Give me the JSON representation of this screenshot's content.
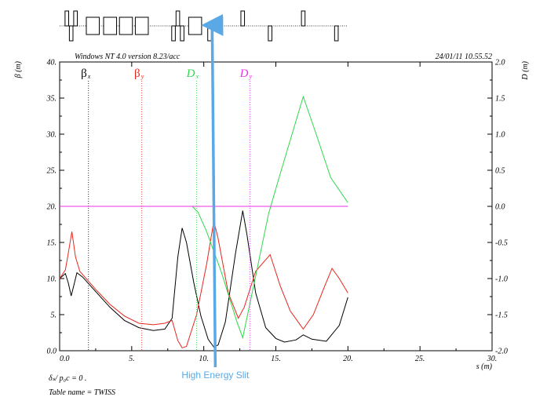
{
  "header": {
    "left": "Windows NT 4.0 version 8.23/acc",
    "right": "24/01/11  10.55.52"
  },
  "footer": {
    "line1": "δₛ/ p₀c  =  0 .",
    "line2": "Table name = TWISS"
  },
  "annotation": {
    "text": "High Energy Slit",
    "s": 10.8,
    "color": "#5aa9e6"
  },
  "lattice": [
    {
      "type": "quad_f",
      "s": 0.5,
      "len": 0.25
    },
    {
      "type": "quad_d",
      "s": 0.8,
      "len": 0.25
    },
    {
      "type": "quad_f",
      "s": 1.1,
      "len": 0.25
    },
    {
      "type": "bend",
      "s": 2.3,
      "len": 0.9
    },
    {
      "type": "bend",
      "s": 3.5,
      "len": 0.9
    },
    {
      "type": "bend",
      "s": 4.6,
      "len": 0.9
    },
    {
      "type": "bend",
      "s": 5.7,
      "len": 0.9
    },
    {
      "type": "quad_d",
      "s": 7.9,
      "len": 0.25
    },
    {
      "type": "quad_f",
      "s": 8.2,
      "len": 0.25
    },
    {
      "type": "quad_d",
      "s": 8.5,
      "len": 0.25
    },
    {
      "type": "bend",
      "s": 9.4,
      "len": 0.9
    },
    {
      "type": "quad_d",
      "s": 10.4,
      "len": 0.25
    },
    {
      "type": "quad_f",
      "s": 12.7,
      "len": 0.25
    },
    {
      "type": "quad_d",
      "s": 14.6,
      "len": 0.25
    },
    {
      "type": "quad_f",
      "s": 16.9,
      "len": 0.25
    },
    {
      "type": "quad_d",
      "s": 19.2,
      "len": 0.25
    }
  ],
  "chart_data": {
    "type": "line",
    "xlabel": "s (m)",
    "ylabel_left": "β  (m)",
    "ylabel_right": "D  (m)",
    "xlim": [
      0,
      30
    ],
    "ylim_left": [
      0,
      40
    ],
    "ylim_right": [
      -2,
      2
    ],
    "xticks": [
      0,
      5,
      10,
      15,
      20,
      25,
      30
    ],
    "xtick_labels": [
      "0.0",
      "5.",
      "10.",
      "15.",
      "20.",
      "25.",
      "30."
    ],
    "yticks_left": [
      0,
      5,
      10,
      15,
      20,
      25,
      30,
      35,
      40
    ],
    "ytick_labels_left": [
      "0.0",
      "5.",
      "10.",
      "15.",
      "20.",
      "25.",
      "30.",
      "35.",
      "40."
    ],
    "yticks_right": [
      -2,
      -1.5,
      -1,
      -0.5,
      0,
      0.5,
      1,
      1.5,
      2
    ],
    "ytick_labels_right": [
      "-2.0",
      "-1.5",
      "-1.0",
      "-0.5",
      "0.0",
      "0.5",
      "1.0",
      "1.5",
      "2.0"
    ],
    "series": [
      {
        "name": "βx",
        "label_main": "β",
        "label_sub": "x",
        "label_s": 2.0,
        "axis": "left",
        "color": "#000000",
        "points": [
          [
            0,
            10
          ],
          [
            0.4,
            10.7
          ],
          [
            0.6,
            9.4
          ],
          [
            0.8,
            7.6
          ],
          [
            1.0,
            9.2
          ],
          [
            1.2,
            10.8
          ],
          [
            1.6,
            10.2
          ],
          [
            2.5,
            8.2
          ],
          [
            3.5,
            6.0
          ],
          [
            4.5,
            4.2
          ],
          [
            5.5,
            3.2
          ],
          [
            6.5,
            2.8
          ],
          [
            7.3,
            3.0
          ],
          [
            7.8,
            4.5
          ],
          [
            8.2,
            13.0
          ],
          [
            8.5,
            17.0
          ],
          [
            8.8,
            15.0
          ],
          [
            9.3,
            9.5
          ],
          [
            9.8,
            4.8
          ],
          [
            10.3,
            1.6
          ],
          [
            10.7,
            0.5
          ],
          [
            11.0,
            0.8
          ],
          [
            11.5,
            4.0
          ],
          [
            12.2,
            13.5
          ],
          [
            12.7,
            19.4
          ],
          [
            13.0,
            16.0
          ],
          [
            13.6,
            8.0
          ],
          [
            14.3,
            3.2
          ],
          [
            15.0,
            1.7
          ],
          [
            15.6,
            1.2
          ],
          [
            16.4,
            1.5
          ],
          [
            16.9,
            2.2
          ],
          [
            17.5,
            1.6
          ],
          [
            18.5,
            1.3
          ],
          [
            19.4,
            3.5
          ],
          [
            20.0,
            7.4
          ]
        ]
      },
      {
        "name": "βy",
        "label_main": "β",
        "label_sub": "y",
        "label_s": 5.7,
        "axis": "left",
        "color": "#e8261c",
        "points": [
          [
            0,
            10
          ],
          [
            0.4,
            11.2
          ],
          [
            0.6,
            13.5
          ],
          [
            0.85,
            16.5
          ],
          [
            1.1,
            13.0
          ],
          [
            1.4,
            11.0
          ],
          [
            2.5,
            8.5
          ],
          [
            3.5,
            6.4
          ],
          [
            4.5,
            4.8
          ],
          [
            5.5,
            3.8
          ],
          [
            6.5,
            3.6
          ],
          [
            7.3,
            3.8
          ],
          [
            7.8,
            4.2
          ],
          [
            8.2,
            1.4
          ],
          [
            8.5,
            0.4
          ],
          [
            8.8,
            0.6
          ],
          [
            9.5,
            5.0
          ],
          [
            10.2,
            12.0
          ],
          [
            10.7,
            18.0
          ],
          [
            11.0,
            15.5
          ],
          [
            11.7,
            8.0
          ],
          [
            12.4,
            4.5
          ],
          [
            12.8,
            6.0
          ],
          [
            13.6,
            11.0
          ],
          [
            14.6,
            13.3
          ],
          [
            15.3,
            9.0
          ],
          [
            16.0,
            5.5
          ],
          [
            16.9,
            3.0
          ],
          [
            17.6,
            5.0
          ],
          [
            18.4,
            9.0
          ],
          [
            18.9,
            11.4
          ],
          [
            19.4,
            10.0
          ],
          [
            20.0,
            8.0
          ]
        ]
      },
      {
        "name": "Dx",
        "label_main": "D",
        "label_sub": "x",
        "label_s": 9.5,
        "axis": "right",
        "color": "#2ed84a",
        "points": [
          [
            0,
            0
          ],
          [
            9.2,
            0
          ],
          [
            9.6,
            -0.08
          ],
          [
            10.2,
            -0.35
          ],
          [
            11.2,
            -0.9
          ],
          [
            12.3,
            -1.6
          ],
          [
            12.7,
            -1.82
          ],
          [
            13.3,
            -1.25
          ],
          [
            14.5,
            -0.1
          ],
          [
            15.3,
            0.45
          ],
          [
            16.2,
            1.05
          ],
          [
            16.9,
            1.52
          ],
          [
            17.8,
            1.0
          ],
          [
            18.8,
            0.4
          ],
          [
            20.0,
            0.05
          ]
        ]
      },
      {
        "name": "Dy",
        "label_main": "D",
        "label_sub": "y",
        "label_s": 13.2,
        "axis": "right",
        "color": "#e832e8",
        "points": [
          [
            0,
            0
          ],
          [
            20.0,
            0
          ]
        ]
      }
    ]
  }
}
